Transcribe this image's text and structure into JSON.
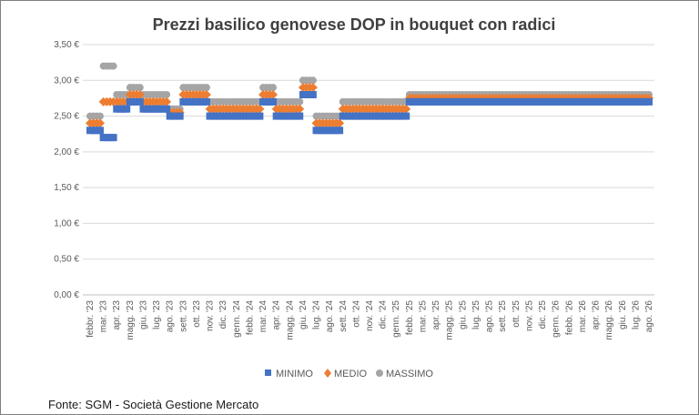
{
  "source_note": "Fonte: SGM - Società Gestione Mercato",
  "colors": {
    "minimo": "#4472C4",
    "medio": "#ED7D31",
    "massimo": "#A5A5A5",
    "grid": "#d9d9d9",
    "axis": "#bfbfbf"
  },
  "chart_data": {
    "type": "scatter",
    "title": "Prezzi basilico genovese DOP in bouquet con radici",
    "xlabel": "",
    "ylabel": "",
    "ylim": [
      0,
      3.5
    ],
    "y_ticks": [
      0,
      0.5,
      1.0,
      1.5,
      2.0,
      2.5,
      3.0,
      3.5
    ],
    "y_tick_labels": [
      "0,00 €",
      "0,50 €",
      "1,00 €",
      "1,50 €",
      "2,00 €",
      "2,50 €",
      "3,00 €",
      "3,50 €"
    ],
    "x_tick_labels": [
      "febbr. '23",
      "mar. '23",
      "apr. '23",
      "magg. '23",
      "giu. '23",
      "lug. '23",
      "ago. '23",
      "sett. '23",
      "ott. '23",
      "nov. '23",
      "dic. '23",
      "genn. '24",
      "febb. '24",
      "mar. '24",
      "apr. '24",
      "magg. '24",
      "giu. '24",
      "lug. '24",
      "ago. '24",
      "sett. '24",
      "ott. '24",
      "nov. '24",
      "dic. '24",
      "genn. '25",
      "febb. '25",
      "mar. '25",
      "apr. '25",
      "magg. '25",
      "giu. '25",
      "lug. '25",
      "ago. '25",
      "sett. '25",
      "ott. '25",
      "nov. '25",
      "dic. '25",
      "genn. '26",
      "febb. '26",
      "mar. '26",
      "apr. '26",
      "magg. '26",
      "giu. '26",
      "lug. '26",
      "ago. '26"
    ],
    "legend_position": "bottom",
    "grid": true,
    "x": [
      0,
      1,
      2,
      3,
      4,
      5,
      6,
      7,
      8,
      9,
      10,
      11,
      12,
      13,
      14,
      15,
      16,
      17,
      18,
      19,
      20,
      21,
      22,
      23,
      24,
      25,
      26,
      27,
      28,
      29,
      30,
      31,
      32,
      33,
      34,
      35,
      36,
      37,
      38,
      39,
      40,
      41,
      42
    ],
    "series": [
      {
        "name": "MINIMO",
        "marker": "square",
        "values": [
          2.3,
          2.2,
          2.6,
          2.7,
          2.6,
          2.6,
          2.5,
          2.7,
          2.7,
          2.5,
          2.5,
          2.5,
          2.5,
          2.7,
          2.5,
          2.5,
          2.8,
          2.3,
          2.3,
          2.5,
          2.5,
          2.5,
          2.5,
          2.5,
          2.7,
          2.7,
          2.7,
          2.7,
          2.7,
          2.7,
          2.7,
          2.7,
          2.7,
          2.7,
          2.7,
          2.7,
          2.7,
          2.7,
          2.7,
          2.7,
          2.7,
          2.7,
          2.7
        ]
      },
      {
        "name": "MEDIO",
        "marker": "diamond",
        "values": [
          2.4,
          2.7,
          2.7,
          2.8,
          2.7,
          2.7,
          2.55,
          2.8,
          2.8,
          2.6,
          2.6,
          2.6,
          2.6,
          2.8,
          2.6,
          2.6,
          2.9,
          2.4,
          2.4,
          2.6,
          2.6,
          2.6,
          2.6,
          2.6,
          2.75,
          2.75,
          2.75,
          2.75,
          2.75,
          2.75,
          2.75,
          2.75,
          2.75,
          2.75,
          2.75,
          2.75,
          2.75,
          2.75,
          2.75,
          2.75,
          2.75,
          2.75,
          2.75
        ]
      },
      {
        "name": "MASSIMO",
        "marker": "circle",
        "values": [
          2.5,
          3.2,
          2.8,
          2.9,
          2.8,
          2.8,
          2.6,
          2.9,
          2.9,
          2.7,
          2.7,
          2.7,
          2.7,
          2.9,
          2.7,
          2.7,
          3.0,
          2.5,
          2.5,
          2.7,
          2.7,
          2.7,
          2.7,
          2.7,
          2.8,
          2.8,
          2.8,
          2.8,
          2.8,
          2.8,
          2.8,
          2.8,
          2.8,
          2.8,
          2.8,
          2.8,
          2.8,
          2.8,
          2.8,
          2.8,
          2.8,
          2.8,
          2.8
        ]
      }
    ]
  }
}
